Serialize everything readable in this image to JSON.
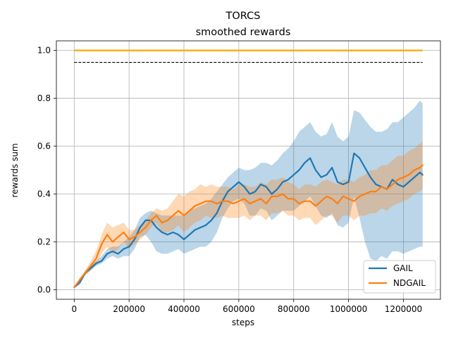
{
  "chart_data": {
    "type": "line",
    "title": "TORCS",
    "subtitle": "smoothed rewards",
    "xlabel": "steps",
    "ylabel": "rewards sum",
    "xlim": [
      -65000,
      1335000
    ],
    "ylim": [
      -0.04,
      1.04
    ],
    "xticks": [
      0,
      200000,
      400000,
      600000,
      800000,
      1000000,
      1200000
    ],
    "yticks": [
      0.0,
      0.2,
      0.4,
      0.6,
      0.8,
      1.0
    ],
    "grid": true,
    "legend_position": "lower-right",
    "reference_lines": [
      {
        "y": 1.0,
        "x_range": [
          0,
          1270000
        ],
        "color": "#ffa500",
        "style": "solid"
      },
      {
        "y": 0.95,
        "x_range": [
          0,
          1270000
        ],
        "color": "#000000",
        "style": "dashed"
      }
    ],
    "series": [
      {
        "name": "GAIL",
        "color": "#1f77b4",
        "band_color": "#1f77b4",
        "x": [
          0,
          20000,
          40000,
          60000,
          80000,
          100000,
          120000,
          140000,
          160000,
          180000,
          200000,
          220000,
          240000,
          260000,
          280000,
          300000,
          320000,
          340000,
          360000,
          380000,
          400000,
          420000,
          440000,
          460000,
          480000,
          500000,
          520000,
          540000,
          560000,
          580000,
          600000,
          620000,
          640000,
          660000,
          680000,
          700000,
          720000,
          740000,
          760000,
          780000,
          800000,
          820000,
          840000,
          860000,
          880000,
          900000,
          920000,
          940000,
          960000,
          980000,
          1000000,
          1020000,
          1040000,
          1060000,
          1080000,
          1100000,
          1120000,
          1140000,
          1160000,
          1180000,
          1200000,
          1220000,
          1240000,
          1260000,
          1270000
        ],
        "values": [
          0.01,
          0.03,
          0.07,
          0.09,
          0.11,
          0.12,
          0.15,
          0.16,
          0.15,
          0.17,
          0.18,
          0.21,
          0.26,
          0.29,
          0.29,
          0.26,
          0.24,
          0.23,
          0.24,
          0.23,
          0.21,
          0.23,
          0.25,
          0.26,
          0.27,
          0.29,
          0.32,
          0.37,
          0.41,
          0.43,
          0.45,
          0.43,
          0.4,
          0.41,
          0.44,
          0.43,
          0.4,
          0.42,
          0.45,
          0.46,
          0.48,
          0.5,
          0.53,
          0.55,
          0.5,
          0.47,
          0.48,
          0.51,
          0.45,
          0.44,
          0.45,
          0.57,
          0.55,
          0.51,
          0.47,
          0.44,
          0.43,
          0.42,
          0.46,
          0.44,
          0.43,
          0.45,
          0.47,
          0.49,
          0.48
        ],
        "upper": [
          0.01,
          0.04,
          0.08,
          0.1,
          0.12,
          0.14,
          0.17,
          0.18,
          0.18,
          0.2,
          0.22,
          0.25,
          0.3,
          0.32,
          0.33,
          0.32,
          0.31,
          0.31,
          0.31,
          0.31,
          0.31,
          0.33,
          0.34,
          0.35,
          0.36,
          0.38,
          0.41,
          0.44,
          0.47,
          0.49,
          0.51,
          0.5,
          0.5,
          0.51,
          0.53,
          0.53,
          0.52,
          0.54,
          0.57,
          0.59,
          0.62,
          0.66,
          0.68,
          0.7,
          0.66,
          0.64,
          0.65,
          0.7,
          0.64,
          0.62,
          0.64,
          0.75,
          0.74,
          0.71,
          0.68,
          0.66,
          0.66,
          0.67,
          0.7,
          0.7,
          0.72,
          0.74,
          0.76,
          0.79,
          0.78
        ],
        "lower": [
          0.01,
          0.02,
          0.06,
          0.08,
          0.1,
          0.11,
          0.13,
          0.14,
          0.13,
          0.14,
          0.14,
          0.17,
          0.22,
          0.23,
          0.2,
          0.16,
          0.15,
          0.15,
          0.16,
          0.17,
          0.15,
          0.16,
          0.17,
          0.18,
          0.18,
          0.2,
          0.24,
          0.3,
          0.34,
          0.37,
          0.38,
          0.36,
          0.31,
          0.31,
          0.34,
          0.33,
          0.29,
          0.31,
          0.33,
          0.33,
          0.33,
          0.35,
          0.37,
          0.39,
          0.35,
          0.31,
          0.3,
          0.32,
          0.27,
          0.26,
          0.28,
          0.39,
          0.3,
          0.2,
          0.13,
          0.12,
          0.14,
          0.13,
          0.16,
          0.16,
          0.15,
          0.16,
          0.17,
          0.18,
          0.18
        ]
      },
      {
        "name": "NDGAIL",
        "color": "#ff7f0e",
        "band_color": "#ff7f0e",
        "x": [
          0,
          20000,
          40000,
          60000,
          80000,
          100000,
          120000,
          140000,
          160000,
          180000,
          200000,
          220000,
          240000,
          260000,
          280000,
          300000,
          320000,
          340000,
          360000,
          380000,
          400000,
          420000,
          440000,
          460000,
          480000,
          500000,
          520000,
          540000,
          560000,
          580000,
          600000,
          620000,
          640000,
          660000,
          680000,
          700000,
          720000,
          740000,
          760000,
          780000,
          800000,
          820000,
          840000,
          860000,
          880000,
          900000,
          920000,
          940000,
          960000,
          980000,
          1000000,
          1020000,
          1040000,
          1060000,
          1080000,
          1100000,
          1120000,
          1140000,
          1160000,
          1180000,
          1200000,
          1220000,
          1240000,
          1260000,
          1270000
        ],
        "values": [
          0.01,
          0.04,
          0.07,
          0.1,
          0.13,
          0.19,
          0.23,
          0.2,
          0.22,
          0.24,
          0.21,
          0.22,
          0.24,
          0.26,
          0.29,
          0.31,
          0.28,
          0.29,
          0.31,
          0.33,
          0.31,
          0.33,
          0.35,
          0.36,
          0.37,
          0.37,
          0.36,
          0.37,
          0.37,
          0.36,
          0.37,
          0.38,
          0.36,
          0.37,
          0.38,
          0.36,
          0.39,
          0.39,
          0.4,
          0.38,
          0.38,
          0.36,
          0.37,
          0.37,
          0.35,
          0.37,
          0.39,
          0.38,
          0.36,
          0.39,
          0.38,
          0.37,
          0.39,
          0.4,
          0.41,
          0.41,
          0.43,
          0.42,
          0.44,
          0.46,
          0.47,
          0.48,
          0.5,
          0.51,
          0.52
        ],
        "upper": [
          0.01,
          0.05,
          0.08,
          0.12,
          0.16,
          0.23,
          0.28,
          0.26,
          0.27,
          0.28,
          0.25,
          0.25,
          0.27,
          0.29,
          0.32,
          0.34,
          0.33,
          0.34,
          0.37,
          0.4,
          0.39,
          0.41,
          0.42,
          0.44,
          0.43,
          0.44,
          0.43,
          0.43,
          0.43,
          0.42,
          0.44,
          0.44,
          0.43,
          0.43,
          0.45,
          0.44,
          0.46,
          0.46,
          0.47,
          0.45,
          0.44,
          0.42,
          0.44,
          0.44,
          0.43,
          0.45,
          0.46,
          0.45,
          0.44,
          0.46,
          0.46,
          0.45,
          0.47,
          0.48,
          0.5,
          0.5,
          0.52,
          0.52,
          0.54,
          0.56,
          0.56,
          0.58,
          0.59,
          0.61,
          0.62
        ],
        "lower": [
          0.01,
          0.03,
          0.06,
          0.08,
          0.1,
          0.15,
          0.18,
          0.15,
          0.17,
          0.2,
          0.17,
          0.19,
          0.21,
          0.23,
          0.26,
          0.28,
          0.24,
          0.24,
          0.25,
          0.27,
          0.24,
          0.26,
          0.28,
          0.29,
          0.31,
          0.3,
          0.3,
          0.31,
          0.3,
          0.3,
          0.3,
          0.31,
          0.29,
          0.31,
          0.31,
          0.29,
          0.32,
          0.32,
          0.33,
          0.31,
          0.31,
          0.29,
          0.3,
          0.3,
          0.27,
          0.29,
          0.31,
          0.31,
          0.28,
          0.31,
          0.31,
          0.29,
          0.31,
          0.31,
          0.32,
          0.32,
          0.34,
          0.33,
          0.35,
          0.36,
          0.37,
          0.38,
          0.4,
          0.41,
          0.42
        ]
      }
    ]
  }
}
